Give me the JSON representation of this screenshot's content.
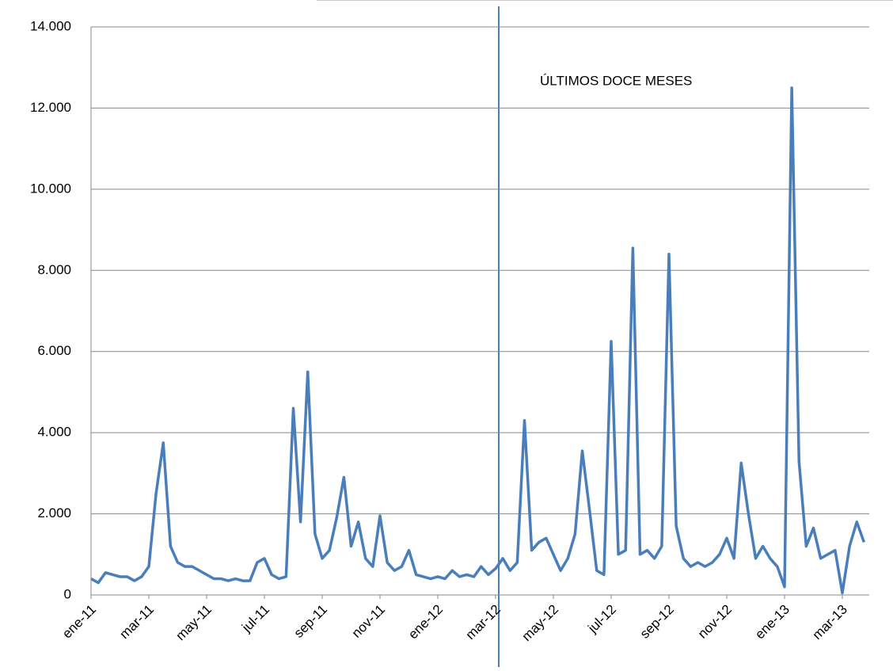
{
  "chart_data": {
    "type": "line",
    "annotation": "ÚLTIMOS DOCE MESES",
    "categories": [
      "ene-11",
      null,
      null,
      null,
      null,
      null,
      null,
      null,
      "mar-11",
      null,
      null,
      null,
      null,
      null,
      null,
      null,
      "may-11",
      null,
      null,
      null,
      null,
      null,
      null,
      null,
      "jul-11",
      null,
      null,
      null,
      null,
      null,
      null,
      null,
      "sep-11",
      null,
      null,
      null,
      null,
      null,
      null,
      null,
      "nov-11",
      null,
      null,
      null,
      null,
      null,
      null,
      null,
      "ene-12",
      null,
      null,
      null,
      null,
      null,
      null,
      null,
      "mar-12",
      null,
      null,
      null,
      null,
      null,
      null,
      null,
      "may-12",
      null,
      null,
      null,
      null,
      null,
      null,
      null,
      "jul-12",
      null,
      null,
      null,
      null,
      null,
      null,
      null,
      "sep-12",
      null,
      null,
      null,
      null,
      null,
      null,
      null,
      "nov-12",
      null,
      null,
      null,
      null,
      null,
      null,
      null,
      "ene-13",
      null,
      null,
      null,
      null,
      null,
      null,
      null,
      "mar-13",
      null,
      null,
      null
    ],
    "series": [
      {
        "color": "#4a7ebb",
        "values": [
          400,
          300,
          550,
          500,
          450,
          450,
          350,
          450,
          700,
          2500,
          3750,
          1200,
          800,
          700,
          700,
          600,
          500,
          400,
          400,
          350,
          400,
          350,
          350,
          800,
          900,
          500,
          400,
          450,
          4600,
          1800,
          5500,
          1500,
          900,
          1100,
          1900,
          2900,
          1200,
          1800,
          900,
          700,
          1950,
          800,
          600,
          700,
          1100,
          500,
          450,
          400,
          450,
          400,
          600,
          450,
          500,
          450,
          700,
          500,
          650,
          900,
          600,
          800,
          4300,
          1100,
          1300,
          1400,
          1000,
          600,
          900,
          1500,
          3550,
          2100,
          600,
          500,
          6250,
          1000,
          1100,
          8550,
          1000,
          1100,
          900,
          1200,
          8400,
          1700,
          900,
          700,
          800,
          700,
          800,
          1000,
          1400,
          900,
          3250,
          2000,
          900,
          1200,
          900,
          700,
          200,
          12500,
          3300,
          1200,
          1650,
          900,
          1000,
          1100,
          50,
          1200,
          1800,
          1300
        ]
      }
    ],
    "ylim": [
      0,
      14000
    ],
    "yticks": [
      0,
      {
        "value": 2000,
        "label": "2.000"
      },
      {
        "value": 4000,
        "label": "4.000"
      },
      {
        "value": 6000,
        "label": "6.000"
      },
      {
        "value": 8000,
        "label": "8.000"
      },
      {
        "value": 10000,
        "label": "10.000"
      },
      {
        "value": 12000,
        "label": "12.000"
      },
      {
        "value": 14000,
        "label": "14.000"
      }
    ],
    "grid": true
  }
}
